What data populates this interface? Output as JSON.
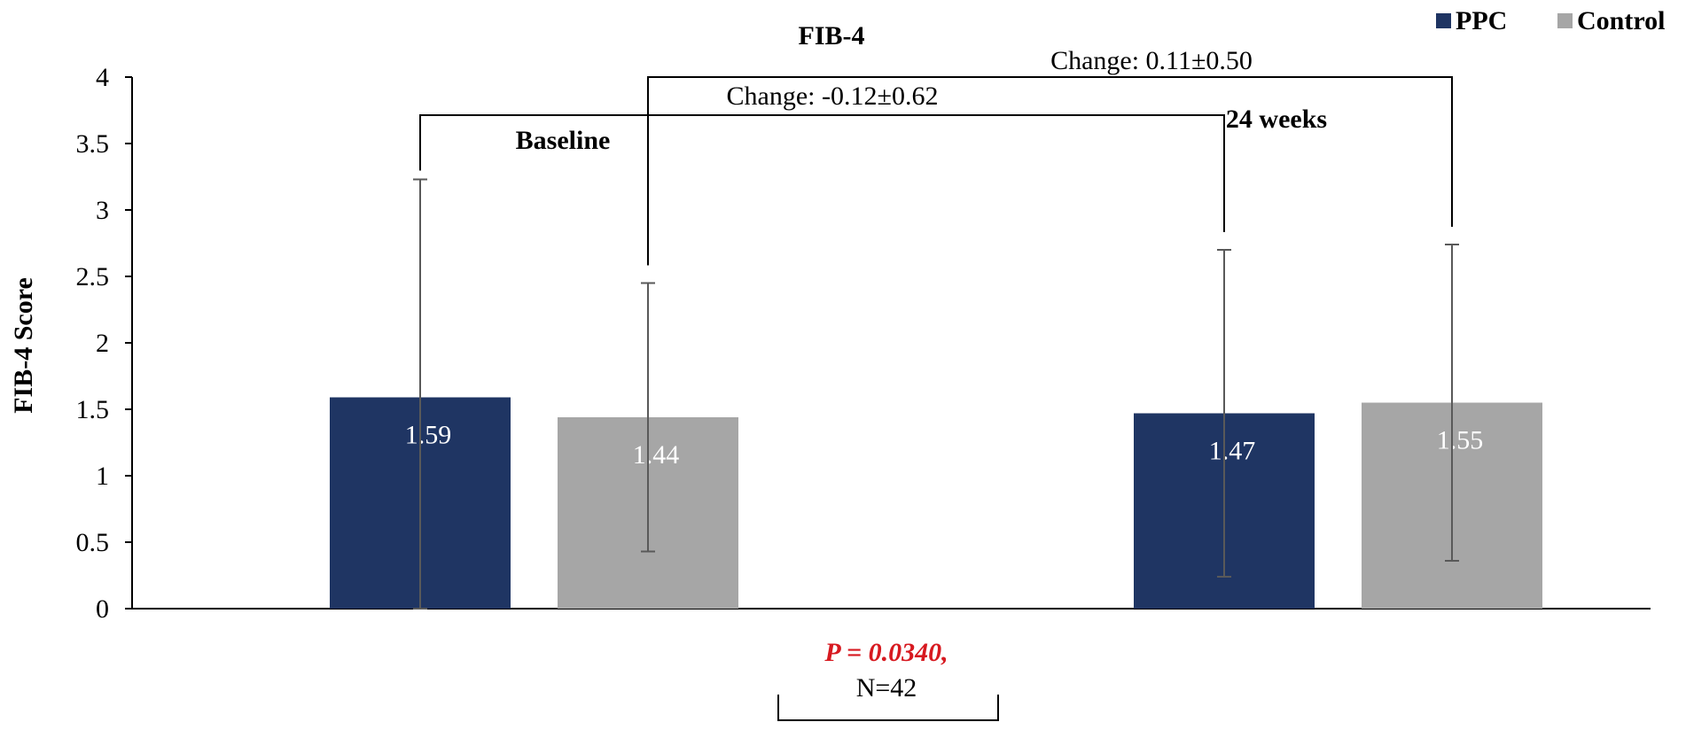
{
  "chart_data": {
    "type": "bar",
    "title": "FIB-4",
    "ylabel": "FIB-4 Score",
    "xlabel": "",
    "ylim": [
      0,
      4
    ],
    "yticks": [
      "0",
      "0.5",
      "1",
      "1.5",
      "2",
      "2.5",
      "3",
      "3.5",
      "4"
    ],
    "grid": false,
    "legend_position": "top-right",
    "categories": [
      "Baseline",
      "24 weeks"
    ],
    "series": [
      {
        "name": "PPC",
        "color": "#1f3563",
        "values": [
          1.59,
          1.47
        ],
        "error_low": [
          0.0,
          0.24
        ],
        "error_high": [
          3.23,
          2.7
        ],
        "labels": [
          "1.59",
          "1.47"
        ]
      },
      {
        "name": "Control",
        "color": "#a6a6a6",
        "values": [
          1.44,
          1.55
        ],
        "error_low": [
          0.43,
          0.36
        ],
        "error_high": [
          2.45,
          2.74
        ],
        "labels": [
          "1.44",
          "1.55"
        ]
      }
    ],
    "annotations": {
      "change_ppc": "Change: -0.12±0.62",
      "change_control": "Change: 0.11±0.50",
      "p_value": "P = 0.0340,",
      "n": "N=42"
    },
    "colors": {
      "p_value": "#d71920",
      "error_bar": "#595959"
    }
  }
}
